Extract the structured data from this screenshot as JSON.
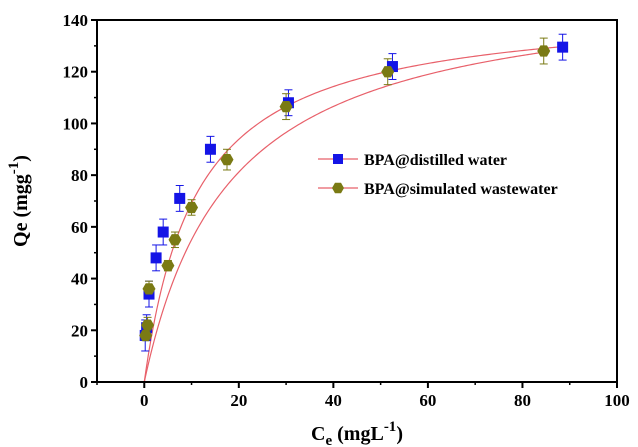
{
  "chart_data": {
    "type": "scatter",
    "xlabel_main": "C",
    "xlabel_sub": "e",
    "xlabel_unit": " (mgL",
    "xlabel_sup": "-1",
    "xlabel_close": ")",
    "ylabel_main": "Qe (mgg",
    "ylabel_sup": "-1",
    "ylabel_close": ")",
    "xlim": [
      -10,
      100
    ],
    "ylim": [
      0,
      140
    ],
    "xticks": [
      0,
      20,
      40,
      60,
      80,
      100
    ],
    "yticks": [
      0,
      20,
      40,
      60,
      80,
      100,
      120,
      140
    ],
    "legend_position": "right-center",
    "grid": false,
    "series": [
      {
        "name": "BPA@distilled water",
        "marker": "square",
        "color": "#1414e6",
        "fit_color": "#e8606a",
        "fit": {
          "model": "langmuir",
          "qmax": 146,
          "K": 0.09
        },
        "x": [
          0.2,
          0.5,
          1.0,
          2.5,
          4.0,
          7.5,
          14.0,
          30.5,
          52.5,
          88.5
        ],
        "y": [
          18,
          21,
          34,
          48,
          58,
          71,
          90,
          108,
          122,
          129.5
        ],
        "err": [
          6,
          5,
          5,
          5,
          5,
          5,
          5,
          5,
          5,
          5
        ]
      },
      {
        "name": "BPA@simulated wastewater",
        "marker": "hexagon",
        "color": "#7a7a14",
        "fit_color": "#e8606a",
        "fit": {
          "model": "langmuir",
          "qmax": 155,
          "K": 0.055
        },
        "x": [
          0.3,
          0.7,
          1.0,
          5.0,
          6.5,
          10.0,
          17.5,
          30.0,
          51.5,
          84.5
        ],
        "y": [
          18,
          22,
          36,
          45,
          55,
          67.5,
          86,
          106.5,
          120,
          128
        ],
        "err": [
          2,
          3,
          3,
          2,
          3,
          3,
          4,
          5,
          5,
          5
        ]
      }
    ]
  }
}
